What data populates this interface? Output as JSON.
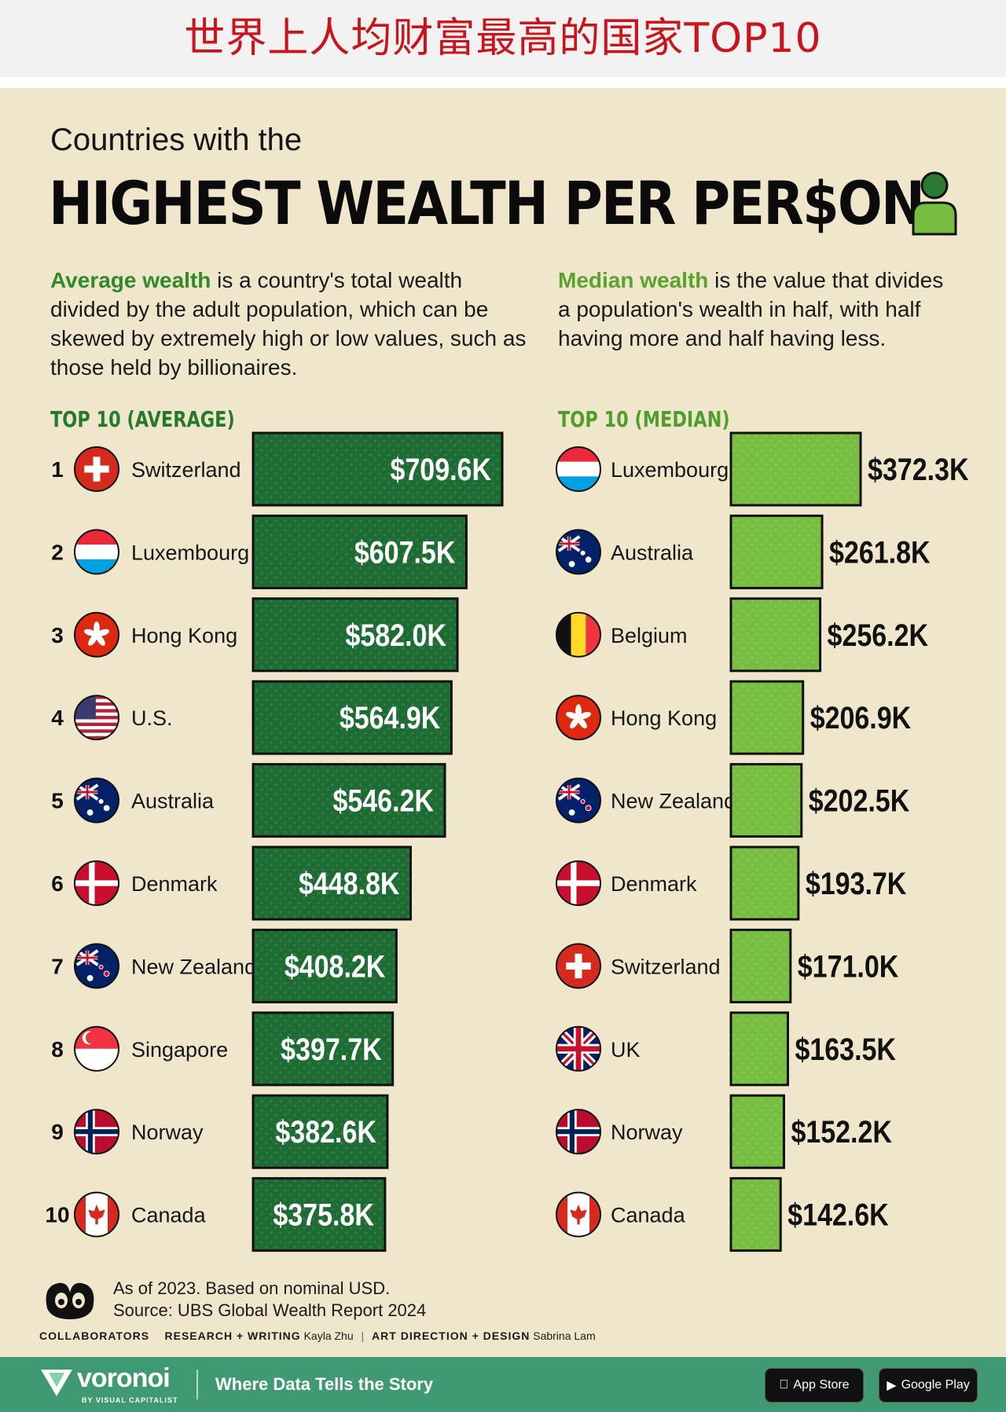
{
  "banner": {
    "title": "世界上人均财富最高的国家TOP10"
  },
  "header": {
    "subtitle": "Countries with the",
    "headline": "HIGHEST WEALTH PER PER$ON",
    "icon": "person-icon"
  },
  "explain_avg": {
    "lead": "Average wealth",
    "text": " is a country's total wealth divided by the adult population, which can be skewed by extremely high or low values, such as those held by billionaires."
  },
  "explain_med": {
    "lead": "Median wealth",
    "text": " is the value that divides a population's wealth in half, with half having more and half having less."
  },
  "colors": {
    "avg_bar": "#1e6b34",
    "median_bar": "#76bd42",
    "avg_head": "#237a2a",
    "median_head": "#4f9d2b"
  },
  "chart_data": [
    {
      "type": "bar",
      "title": "TOP 10 (AVERAGE)",
      "ranks": [
        "1",
        "2",
        "3",
        "4",
        "5",
        "6",
        "7",
        "8",
        "9",
        "10"
      ],
      "categories": [
        "Switzerland",
        "Luxembourg",
        "Hong Kong",
        "U.S.",
        "Australia",
        "Denmark",
        "New Zealand",
        "Singapore",
        "Norway",
        "Canada"
      ],
      "flags": [
        "switzerland",
        "luxembourg",
        "hong-kong",
        "us",
        "australia",
        "denmark",
        "new-zealand",
        "singapore",
        "norway",
        "canada"
      ],
      "values": [
        709.6,
        607.5,
        582.0,
        564.9,
        546.2,
        448.8,
        408.2,
        397.7,
        382.6,
        375.8
      ],
      "labels": [
        "$709.6K",
        "$607.5K",
        "$582.0K",
        "$564.9K",
        "$546.2K",
        "$448.8K",
        "$408.2K",
        "$397.7K",
        "$382.6K",
        "$375.8K"
      ],
      "unit": "USD thousands",
      "orientation": "horizontal"
    },
    {
      "type": "bar",
      "title": "TOP 10 (MEDIAN)",
      "categories": [
        "Luxembourg",
        "Australia",
        "Belgium",
        "Hong Kong",
        "New Zealand",
        "Denmark",
        "Switzerland",
        "UK",
        "Norway",
        "Canada"
      ],
      "flags": [
        "luxembourg",
        "australia",
        "belgium",
        "hong-kong",
        "new-zealand",
        "denmark",
        "switzerland",
        "uk",
        "norway",
        "canada"
      ],
      "values": [
        372.3,
        261.8,
        256.2,
        206.9,
        202.5,
        193.7,
        171.0,
        163.5,
        152.2,
        142.6
      ],
      "labels": [
        "$372.3K",
        "$261.8K",
        "$256.2K",
        "$206.9K",
        "$202.5K",
        "$193.7K",
        "$171.0K",
        "$163.5K",
        "$152.2K",
        "$142.6K"
      ],
      "unit": "USD thousands",
      "orientation": "horizontal"
    }
  ],
  "footer": {
    "note_line1": "As of 2023. Based on nominal USD.",
    "note_line2": "Source: UBS Global Wealth Report 2024",
    "collaborators": "COLLABORATORS",
    "research_label": "RESEARCH + WRITING",
    "research_name": "Kayla Zhu",
    "art_label": "ART DIRECTION + DESIGN",
    "art_name": "Sabrina Lam"
  },
  "bottombar": {
    "brand": "voronoi",
    "brand_sub": "BY VISUAL CAPITALIST",
    "tagline": "Where Data Tells the Story",
    "app_store": "App Store",
    "google_play": "Google Play"
  }
}
